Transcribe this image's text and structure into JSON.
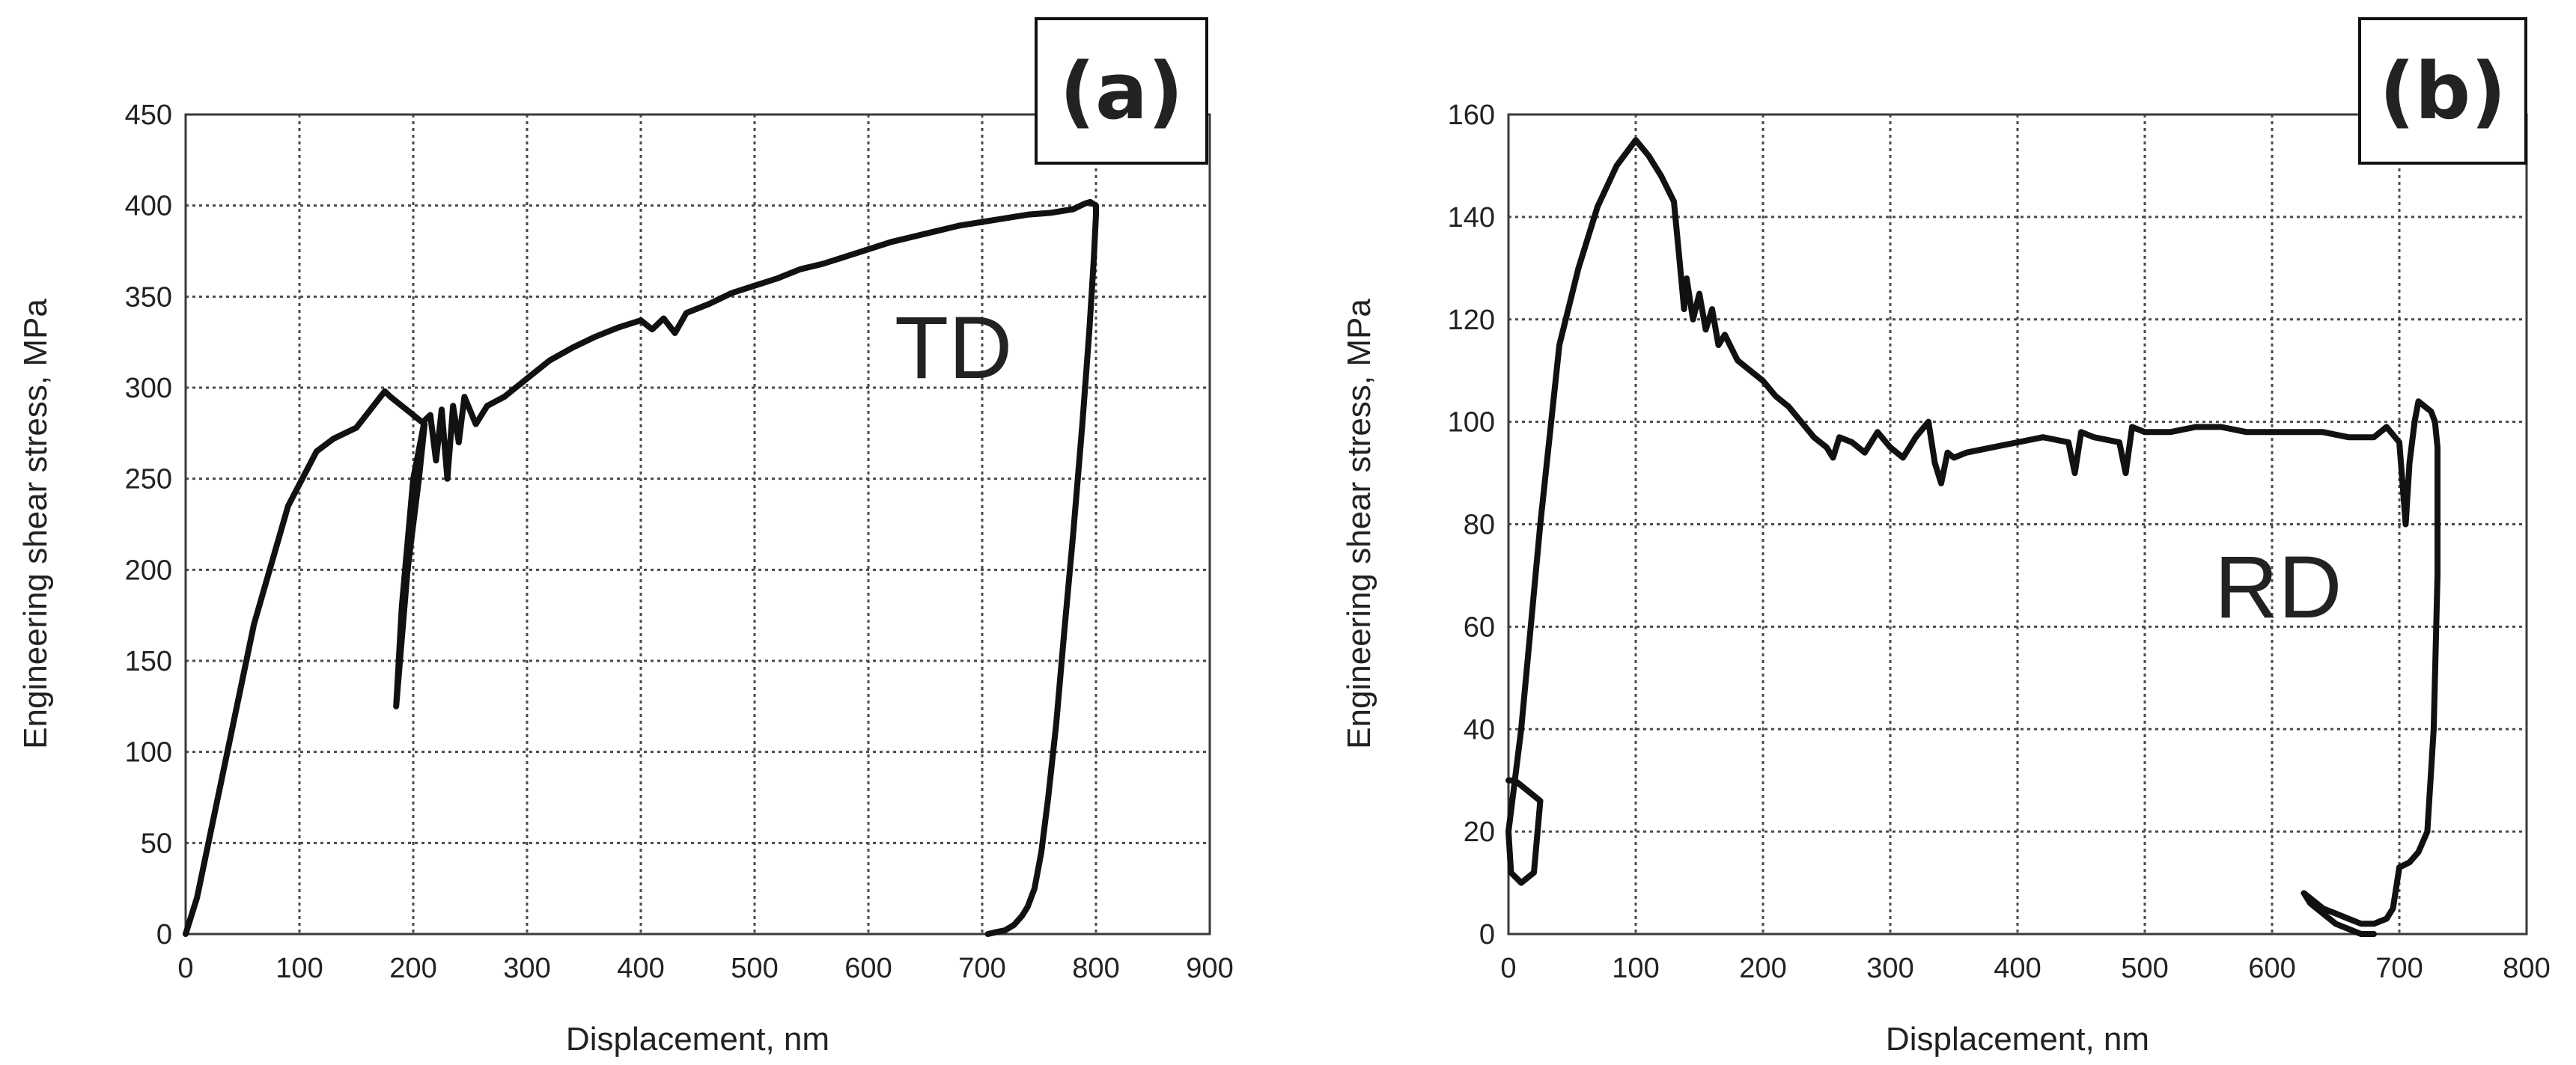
{
  "chart_data": [
    {
      "type": "line",
      "panel_tag": "(a)",
      "series_label": "TD",
      "xlabel": "Displacement, nm",
      "ylabel": "Engineering shear stress, MPa",
      "xlim": [
        0,
        900
      ],
      "ylim": [
        0,
        450
      ],
      "xticks": [
        0,
        100,
        200,
        300,
        400,
        500,
        600,
        700,
        800,
        900
      ],
      "yticks": [
        0,
        50,
        100,
        150,
        200,
        250,
        300,
        350,
        400,
        450
      ],
      "grid": true,
      "series": [
        {
          "name": "TD",
          "x": [
            0,
            10,
            30,
            60,
            90,
            115,
            130,
            150,
            165,
            175,
            180,
            200,
            210,
            205,
            195,
            185,
            190,
            200,
            210,
            215,
            220,
            225,
            230,
            235,
            240,
            245,
            255,
            265,
            280,
            300,
            320,
            340,
            360,
            380,
            400,
            410,
            420,
            430,
            440,
            460,
            480,
            500,
            520,
            540,
            560,
            580,
            600,
            620,
            640,
            660,
            680,
            700,
            720,
            740,
            760,
            780,
            790,
            795,
            800,
            800,
            798,
            794,
            788,
            780,
            772,
            765,
            758,
            752,
            746,
            740,
            735,
            728,
            720,
            712,
            705
          ],
          "y": [
            0,
            20,
            80,
            170,
            235,
            265,
            272,
            278,
            290,
            298,
            295,
            285,
            280,
            250,
            200,
            125,
            180,
            250,
            282,
            285,
            260,
            288,
            250,
            290,
            270,
            295,
            280,
            290,
            295,
            305,
            315,
            322,
            328,
            333,
            337,
            332,
            338,
            330,
            341,
            346,
            352,
            356,
            360,
            365,
            368,
            372,
            376,
            380,
            383,
            386,
            389,
            391,
            393,
            395,
            396,
            398,
            401,
            402,
            400,
            395,
            370,
            330,
            280,
            220,
            165,
            115,
            75,
            45,
            25,
            15,
            10,
            5,
            2,
            1,
            0
          ]
        }
      ]
    },
    {
      "type": "line",
      "panel_tag": "(b)",
      "series_label": "RD",
      "xlabel": "Displacement, nm",
      "ylabel": "Engineering shear stress, MPa",
      "xlim": [
        0,
        800
      ],
      "ylim": [
        0,
        160
      ],
      "xticks": [
        0,
        100,
        200,
        300,
        400,
        500,
        600,
        700,
        800
      ],
      "yticks": [
        0,
        20,
        40,
        60,
        80,
        100,
        120,
        140,
        160
      ],
      "grid": true,
      "series": [
        {
          "name": "RD",
          "x": [
            0,
            5,
            15,
            25,
            20,
            10,
            2,
            0,
            10,
            25,
            40,
            55,
            70,
            85,
            100,
            110,
            120,
            130,
            135,
            138,
            140,
            145,
            150,
            155,
            160,
            165,
            170,
            180,
            190,
            200,
            210,
            220,
            230,
            240,
            250,
            255,
            260,
            270,
            280,
            290,
            300,
            310,
            320,
            330,
            335,
            340,
            345,
            350,
            360,
            380,
            400,
            420,
            440,
            445,
            450,
            460,
            480,
            485,
            490,
            500,
            520,
            540,
            560,
            580,
            600,
            620,
            640,
            660,
            680,
            690,
            700,
            705,
            708,
            712,
            715,
            720,
            725,
            728,
            730,
            730,
            727,
            722,
            715,
            708,
            700,
            695,
            690,
            680,
            670,
            660,
            650,
            640,
            630,
            625,
            630,
            640,
            650,
            660,
            670,
            680
          ],
          "y": [
            30,
            30,
            28,
            26,
            12,
            10,
            12,
            20,
            40,
            80,
            115,
            130,
            142,
            150,
            155,
            152,
            148,
            143,
            130,
            122,
            128,
            120,
            125,
            118,
            122,
            115,
            117,
            112,
            110,
            108,
            105,
            103,
            100,
            97,
            95,
            93,
            97,
            96,
            94,
            98,
            95,
            93,
            97,
            100,
            92,
            88,
            94,
            93,
            94,
            95,
            96,
            97,
            96,
            90,
            98,
            97,
            96,
            90,
            99,
            98,
            98,
            99,
            99,
            98,
            98,
            98,
            98,
            97,
            97,
            99,
            96,
            80,
            92,
            100,
            104,
            103,
            102,
            100,
            95,
            70,
            40,
            20,
            16,
            14,
            13,
            5,
            3,
            2,
            2,
            3,
            4,
            5,
            7,
            8,
            6,
            4,
            2,
            1,
            0,
            0
          ]
        }
      ]
    }
  ]
}
